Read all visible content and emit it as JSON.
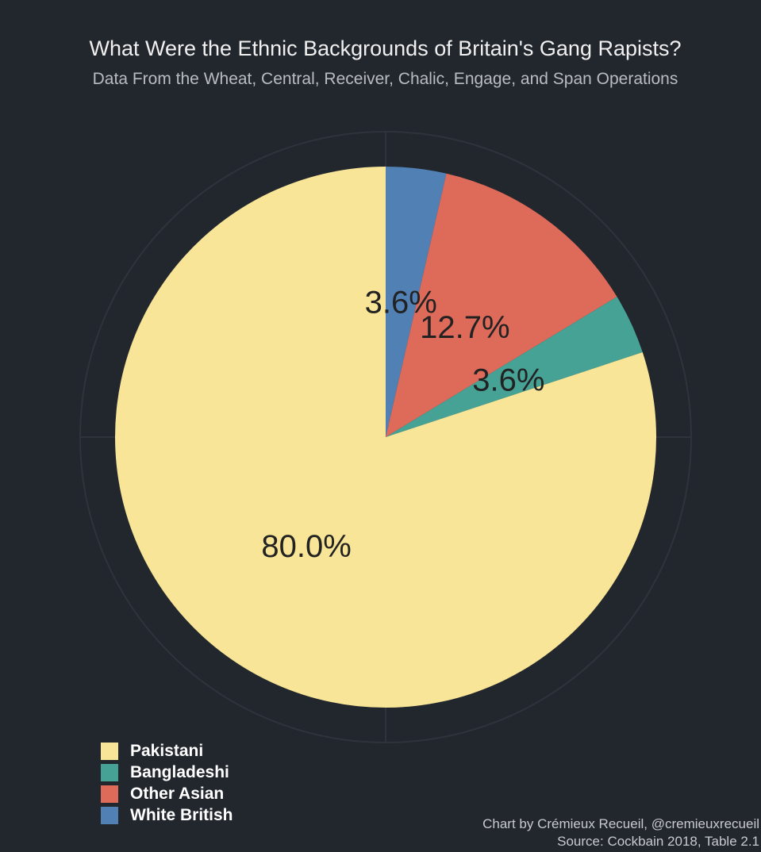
{
  "chart_data": {
    "type": "pie",
    "title": "What Were the Ethnic Backgrounds of Britain's Gang Rapists?",
    "subtitle": "Data From the Wheat, Central, Receiver, Chalic, Engage, and Span Operations",
    "slices": [
      {
        "name": "White British",
        "value": 3.6,
        "label": "3.6%",
        "color": "#5080b4"
      },
      {
        "name": "Other Asian",
        "value": 12.7,
        "label": "12.7%",
        "color": "#de6a5a"
      },
      {
        "name": "Bangladeshi",
        "value": 3.6,
        "label": "3.6%",
        "color": "#46a294"
      },
      {
        "name": "Pakistani",
        "value": 80.0,
        "label": "80.0%",
        "color": "#f8e597"
      }
    ],
    "legend": {
      "placement": "bottom-left",
      "entries": [
        "Pakistani",
        "Bangladeshi",
        "Other Asian",
        "White British"
      ]
    },
    "grid": true
  },
  "credit": {
    "line1": "Chart by Crémieux Recueil, @cremieuxrecueil",
    "line2": "Source: Cockbain 2018, Table 2.1"
  },
  "colors": {
    "background": "#22262d",
    "grid": "#2f333b",
    "label_text": "#222222"
  }
}
